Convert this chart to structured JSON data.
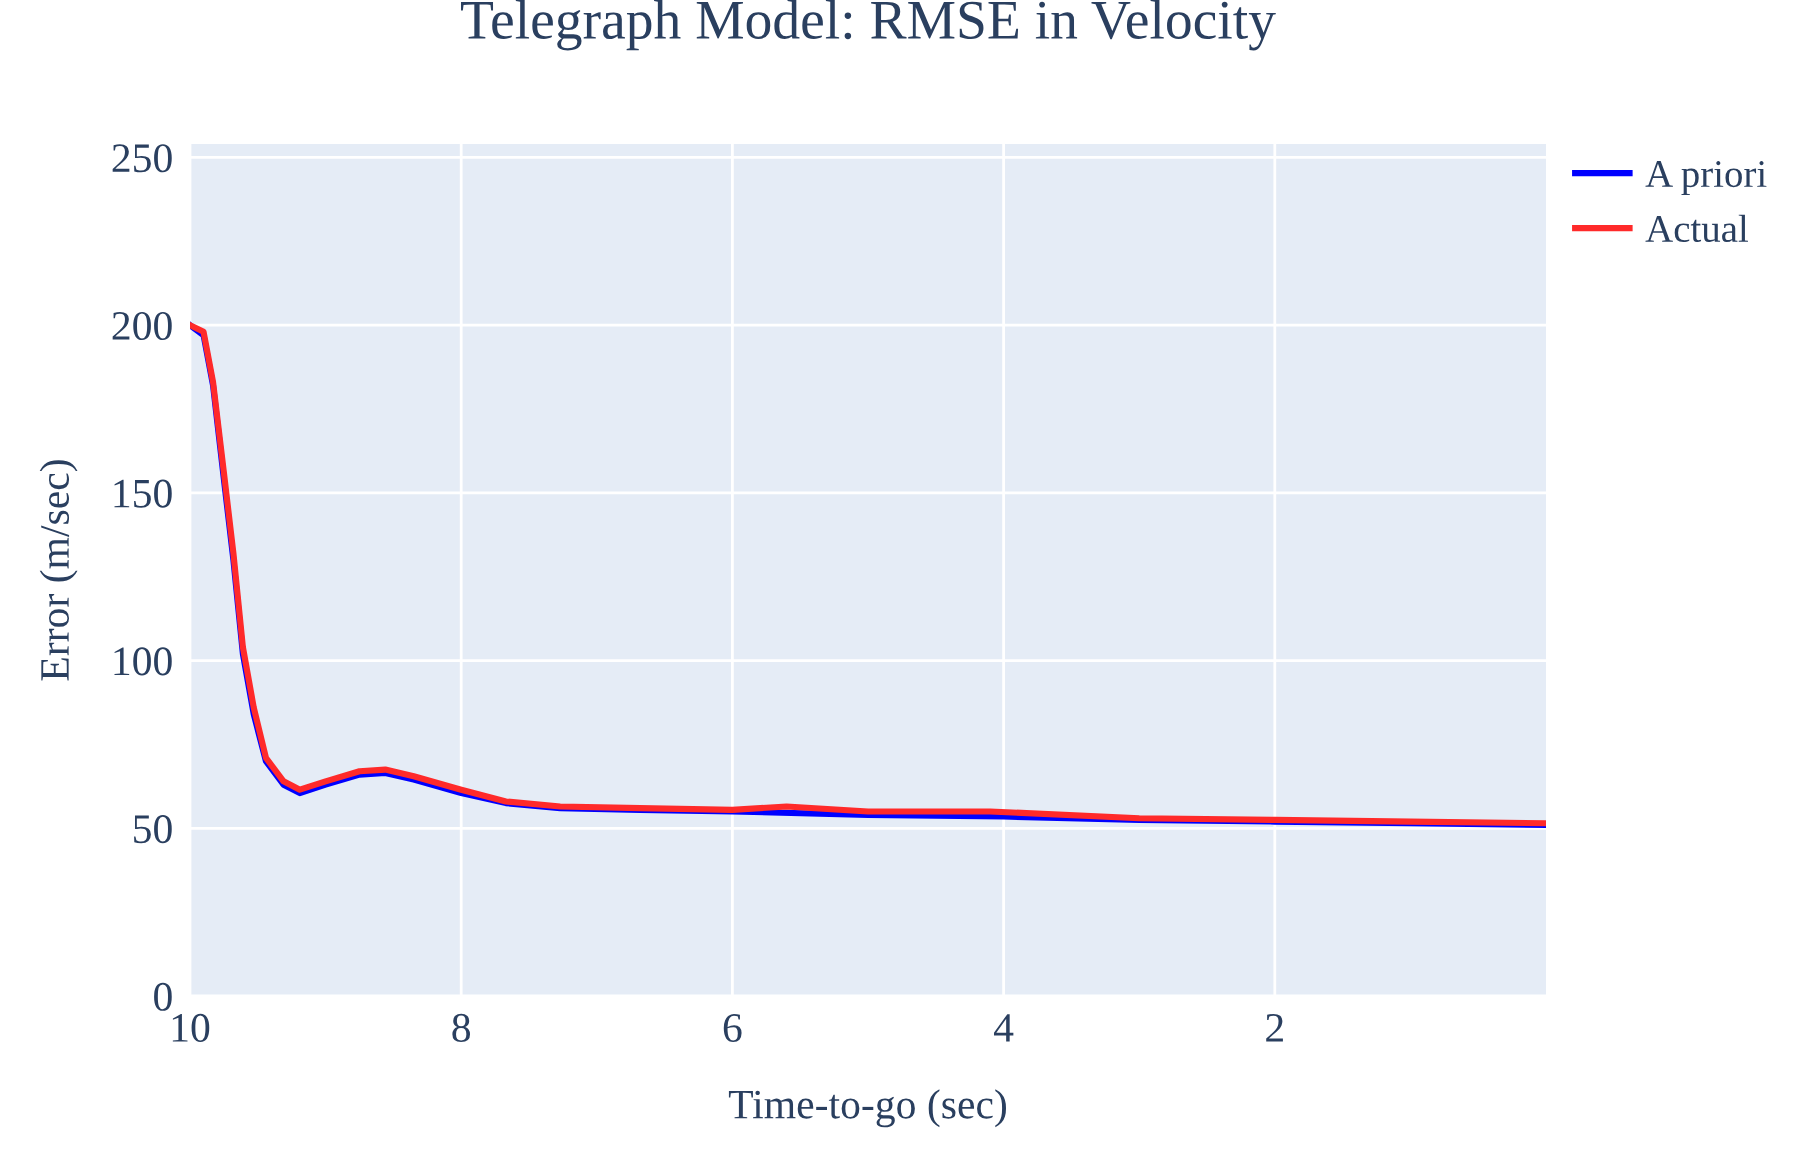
{
  "chart_data": {
    "type": "line",
    "title": "Telegraph Model: RMSE in Velocity",
    "xlabel": "Time-to-go (sec)",
    "ylabel": "Error (m/sec)",
    "xlim": [
      10,
      0
    ],
    "ylim": [
      0,
      254
    ],
    "xticks": [
      10,
      8,
      6,
      4,
      2
    ],
    "yticks": [
      0,
      50,
      100,
      150,
      200,
      250
    ],
    "grid": true,
    "legend": "top right",
    "line_style": "solid",
    "series": [
      {
        "name": "A priori",
        "color": "#0000ff",
        "x": [
          10,
          9.9,
          9.83,
          9.75,
          9.68,
          9.61,
          9.53,
          9.44,
          9.31,
          9.19,
          9.0,
          8.75,
          8.56,
          8.35,
          8.0,
          7.67,
          7.27,
          6.68,
          6.0,
          5.0,
          4.0,
          3.0,
          2.0,
          1.0,
          0
        ],
        "values": [
          200,
          197,
          182,
          154,
          130,
          102,
          84,
          70,
          63,
          60.5,
          63,
          66,
          66.5,
          64.5,
          60.5,
          57.5,
          56,
          55.5,
          55,
          54,
          53.5,
          52.5,
          52,
          51.5,
          51
        ]
      },
      {
        "name": "Actual",
        "color": "#ff2a2a",
        "x": [
          10,
          9.9,
          9.83,
          9.75,
          9.68,
          9.61,
          9.53,
          9.44,
          9.31,
          9.19,
          9.0,
          8.75,
          8.56,
          8.35,
          8.0,
          7.67,
          7.27,
          6.68,
          6.0,
          5.6,
          5.0,
          4.1,
          3.0,
          2.0,
          1.0,
          0
        ],
        "values": [
          200,
          198,
          183,
          156,
          132,
          104,
          86,
          71,
          64,
          61.5,
          64,
          67,
          67.5,
          65.5,
          61.5,
          58,
          56.5,
          56,
          55.5,
          56.5,
          55,
          55,
          53,
          52.5,
          52,
          51.5
        ]
      }
    ]
  }
}
